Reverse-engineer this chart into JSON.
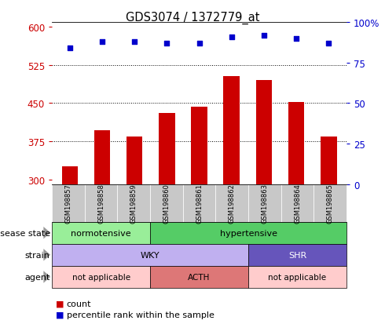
{
  "title": "GDS3074 / 1372779_at",
  "samples": [
    "GSM198857",
    "GSM198858",
    "GSM198859",
    "GSM198860",
    "GSM198861",
    "GSM198862",
    "GSM198863",
    "GSM198864",
    "GSM198865"
  ],
  "counts": [
    325,
    397,
    385,
    430,
    443,
    503,
    496,
    453,
    385
  ],
  "percentile_ranks": [
    84,
    88,
    88,
    87,
    87,
    91,
    92,
    90,
    87
  ],
  "ylim_left": [
    290,
    610
  ],
  "ylim_right": [
    0,
    100
  ],
  "yticks_left": [
    300,
    375,
    450,
    525,
    600
  ],
  "yticks_right": [
    0,
    25,
    50,
    75,
    100
  ],
  "bar_color": "#cc0000",
  "dot_color": "#0000cc",
  "bar_bottom": 290,
  "disease_state_colors": {
    "normotensive": "#99ee99",
    "hypertensive": "#55cc66"
  },
  "strain_colors": {
    "WKY": "#c0b0f0",
    "SHR": "#6655bb"
  },
  "agent_colors": {
    "not_applicable": "#ffcccc",
    "ACTH": "#dd7777"
  },
  "left_label_color": "#cc0000",
  "right_label_color": "#0000cc",
  "sample_box_color": "#c8c8c8",
  "arrow_color": "#999999"
}
